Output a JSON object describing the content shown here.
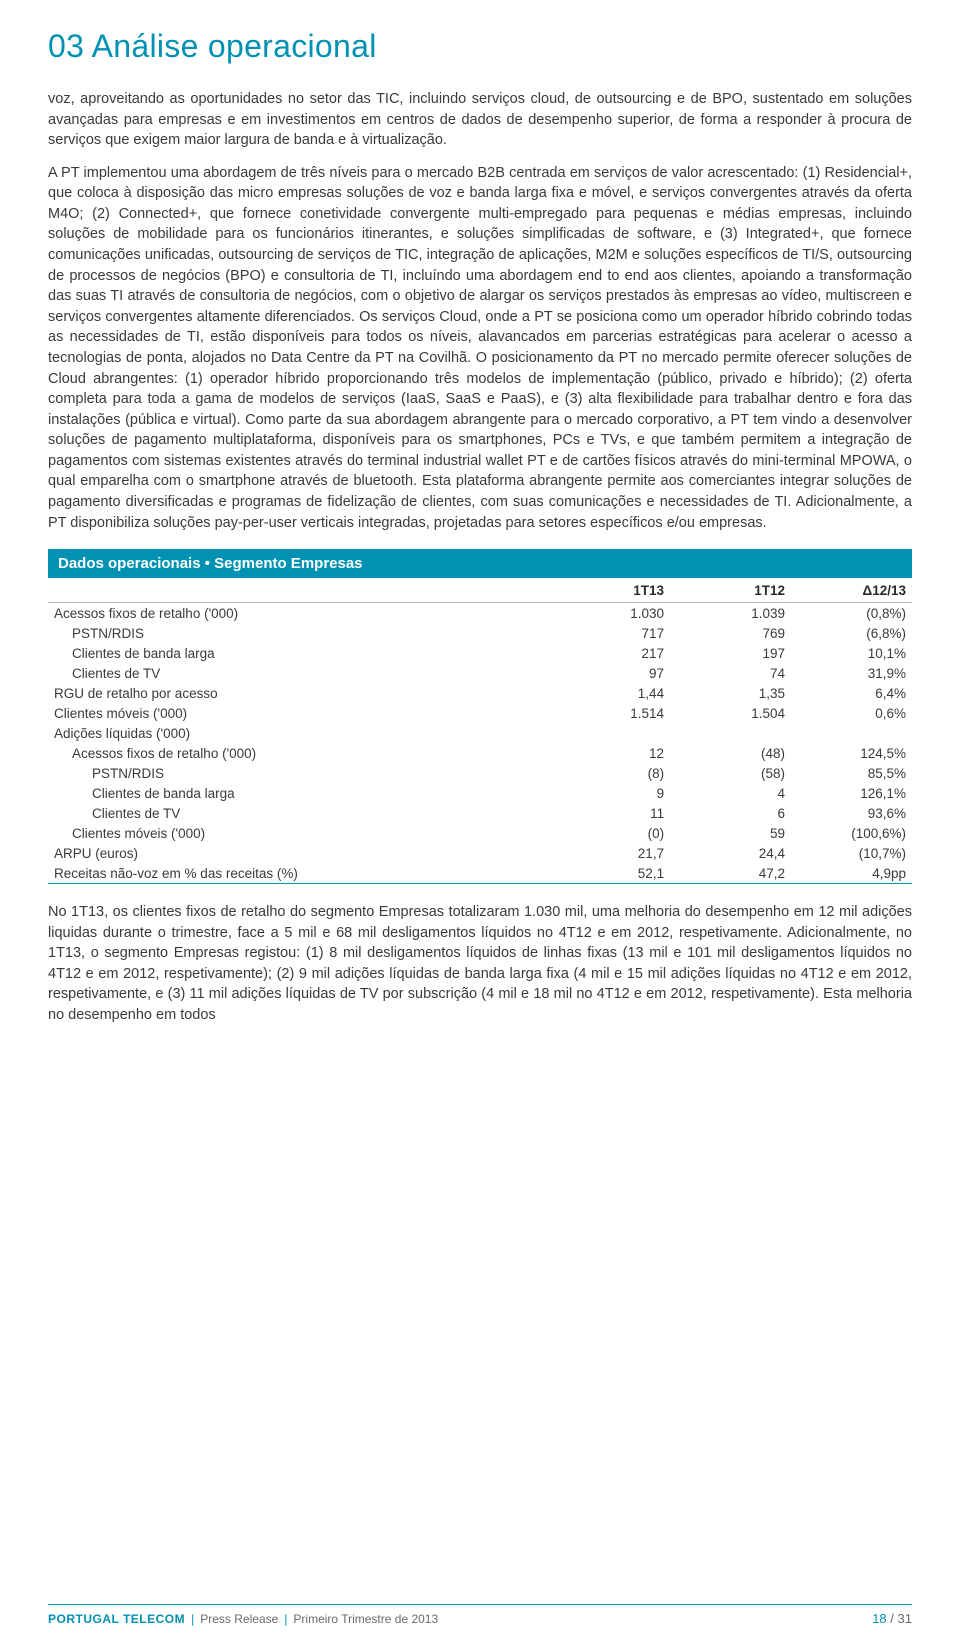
{
  "header": {
    "num": "03",
    "title": "Análise operacional"
  },
  "para1": "voz, aproveitando as oportunidades no setor das TIC, incluindo serviços cloud, de outsourcing e de BPO, sustentado em soluções avançadas para empresas e em investimentos em centros de dados de desempenho superior, de forma a responder à procura de serviços que exigem maior largura de banda e à virtualização.",
  "para2": "A PT implementou uma abordagem de três níveis para o mercado B2B centrada em serviços de valor acrescentado: (1) Residencial+, que coloca à disposição das micro empresas soluções de voz e banda larga fixa e móvel, e serviços convergentes através da oferta M4O; (2) Connected+, que fornece conetividade convergente multi-empregado para pequenas e médias empresas, incluindo soluções de mobilidade para os funcionários itinerantes, e soluções simplificadas de software, e (3) Integrated+, que fornece comunicações unificadas, outsourcing de serviços de TIC, integração de aplicações, M2M e soluções específicos de TI/S, outsourcing de processos de negócios (BPO) e consultoria de TI, incluíndo uma abordagem end to end aos clientes, apoiando a transformação das suas TI através de consultoria de negócios, com o objetivo de alargar os serviços prestados às empresas ao vídeo, multiscreen e serviços convergentes altamente diferenciados. Os serviços Cloud, onde a PT se posiciona como um operador híbrido cobrindo todas as necessidades de TI, estão disponíveis para todos os níveis, alavancados em parcerias estratégicas para acelerar o acesso a tecnologias de ponta, alojados no Data Centre da PT na Covilhã. O posicionamento da PT no mercado permite oferecer soluções de Cloud abrangentes: (1) operador híbrido proporcionando três modelos de implementação (público, privado e híbrido); (2) oferta completa para toda a gama de modelos de serviços (IaaS, SaaS e PaaS), e (3) alta flexibilidade para trabalhar dentro e fora das instalações (pública e virtual). Como parte da sua abordagem abrangente para o mercado corporativo, a PT tem vindo a desenvolver soluções de pagamento multiplataforma, disponíveis para os smartphones, PCs e TVs, e que também permitem a integração de pagamentos com sistemas existentes através do terminal industrial wallet PT e de cartões físicos através do mini-terminal MPOWA, o qual emparelha com o smartphone através de bluetooth. Esta plataforma abrangente permite aos comerciantes integrar soluções de pagamento diversificadas e programas de fidelização de clientes, com suas comunicações e necessidades de TI. Adicionalmente, a PT disponibiliza soluções pay-per-user verticais integradas, projetadas para setores específicos e/ou empresas.",
  "table": {
    "title": "Dados operacionais • Segmento Empresas",
    "columns": [
      "",
      "1T13",
      "1T12",
      "Δ12/13"
    ],
    "rows": [
      {
        "label": "Acessos fixos de retalho ('000)",
        "v": [
          "1.030",
          "1.039",
          "(0,8%)"
        ],
        "indent": 0
      },
      {
        "label": "PSTN/RDIS",
        "v": [
          "717",
          "769",
          "(6,8%)"
        ],
        "indent": 1
      },
      {
        "label": "Clientes de banda larga",
        "v": [
          "217",
          "197",
          "10,1%"
        ],
        "indent": 1
      },
      {
        "label": "Clientes de TV",
        "v": [
          "97",
          "74",
          "31,9%"
        ],
        "indent": 1
      },
      {
        "label": "RGU de retalho por acesso",
        "v": [
          "1,44",
          "1,35",
          "6,4%"
        ],
        "indent": 0
      },
      {
        "label": "Clientes móveis ('000)",
        "v": [
          "1.514",
          "1.504",
          "0,6%"
        ],
        "indent": 0
      },
      {
        "label": "Adições líquidas ('000)",
        "v": [
          "",
          "",
          ""
        ],
        "indent": 0
      },
      {
        "label": "Acessos fixos de retalho ('000)",
        "v": [
          "12",
          "(48)",
          "124,5%"
        ],
        "indent": 1
      },
      {
        "label": "PSTN/RDIS",
        "v": [
          "(8)",
          "(58)",
          "85,5%"
        ],
        "indent": 2
      },
      {
        "label": "Clientes de banda larga",
        "v": [
          "9",
          "4",
          "126,1%"
        ],
        "indent": 2
      },
      {
        "label": "Clientes de TV",
        "v": [
          "11",
          "6",
          "93,6%"
        ],
        "indent": 2
      },
      {
        "label": "Clientes móveis ('000)",
        "v": [
          "(0)",
          "59",
          "(100,6%)"
        ],
        "indent": 1
      },
      {
        "label": "ARPU (euros)",
        "v": [
          "21,7",
          "24,4",
          "(10,7%)"
        ],
        "indent": 0
      },
      {
        "label": "Receitas não-voz em % das receitas (%)",
        "v": [
          "52,1",
          "47,2",
          "4,9pp"
        ],
        "indent": 0
      }
    ],
    "title_bg": "#0091b3",
    "title_color": "#ffffff",
    "border_color": "#0091b3",
    "row_sep_color": "#d9d9d9"
  },
  "para3": "No 1T13, os clientes fixos de retalho do segmento Empresas totalizaram 1.030 mil, uma melhoria do desempenho em 12 mil adições liquidas durante o trimestre, face a 5 mil e 68 mil desligamentos líquidos no 4T12 e em 2012, respetivamente. Adicionalmente, no 1T13, o segmento Empresas registou: (1) 8 mil desligamentos líquidos de linhas fixas (13 mil e 101 mil desligamentos líquidos no 4T12 e em 2012, respetivamente); (2) 9 mil adições líquidas de banda larga fixa (4 mil e 15 mil adições líquidas no 4T12 e em 2012, respetivamente, e (3) 11 mil adições líquidas de TV por subscrição (4 mil e 18 mil no 4T12 e em 2012, respetivamente). Esta melhoria no desempenho em todos",
  "footer": {
    "brand": "PORTUGAL TELECOM",
    "items": [
      "Press Release",
      "Primeiro Trimestre de 2013"
    ],
    "page_current": "18",
    "page_total": "31"
  },
  "colors": {
    "accent": "#0091b3",
    "text": "#3a3a3a",
    "page_bg": "#ffffff"
  }
}
